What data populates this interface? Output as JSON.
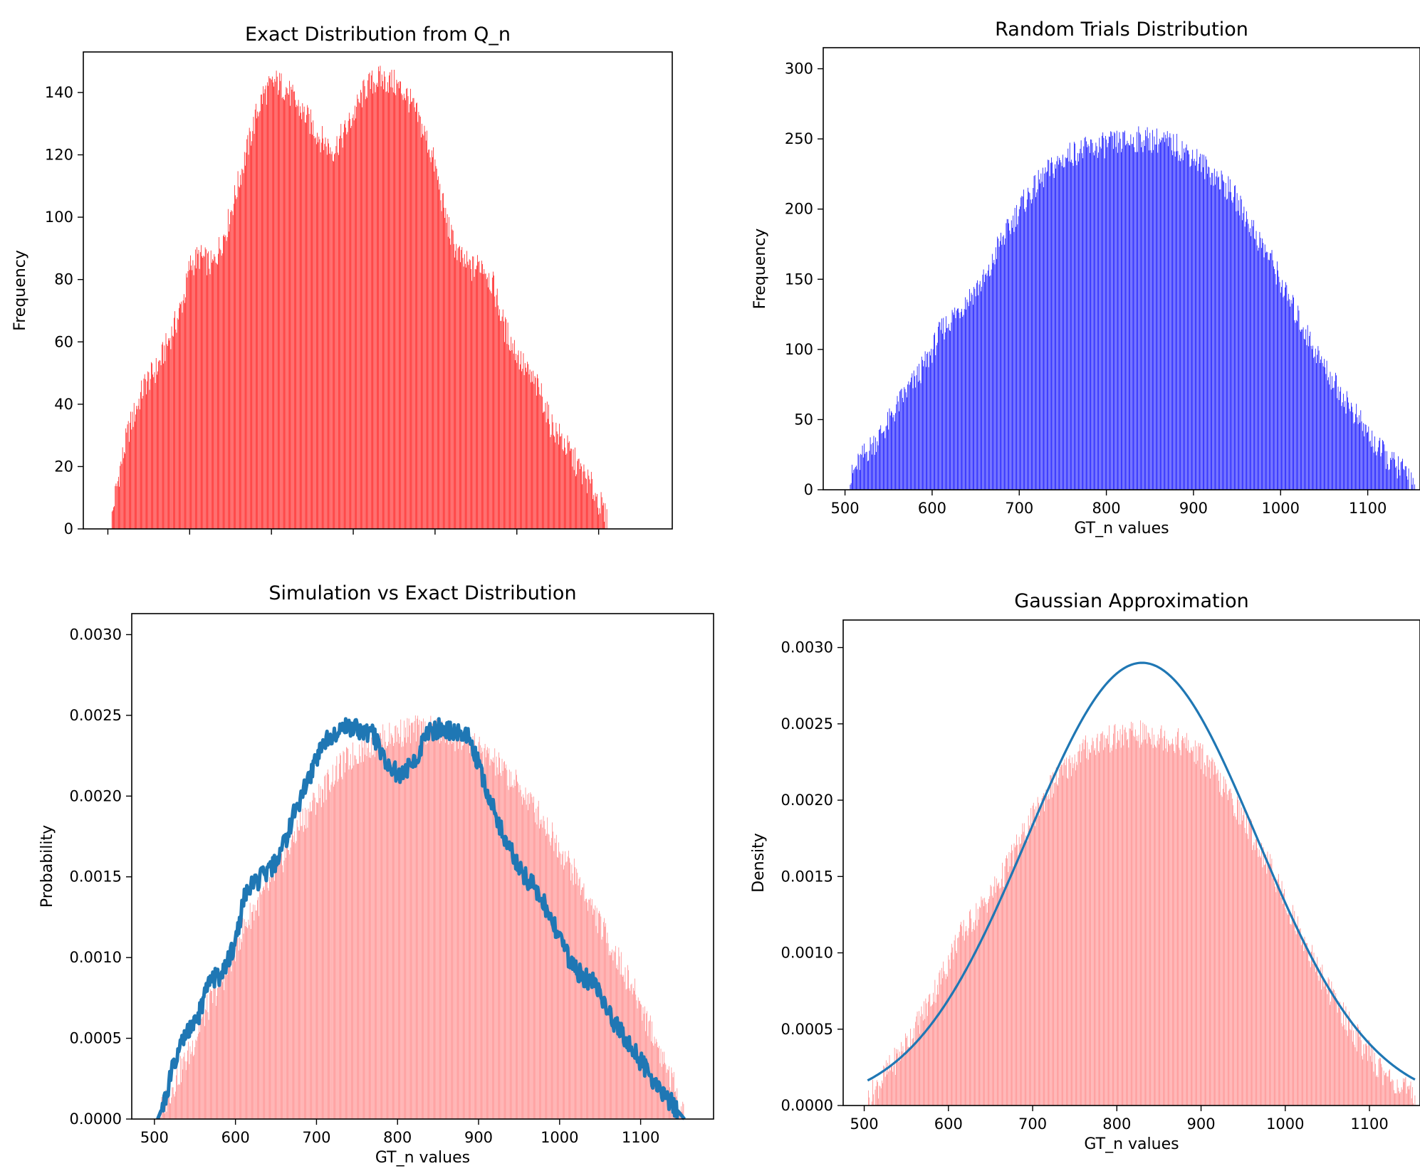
{
  "chart_data": [
    {
      "id": "exact",
      "type": "bar",
      "title": "Exact Distribution from Q_n",
      "xlabel": "",
      "ylabel": "Frequency",
      "xlim": [
        470,
        1190
      ],
      "ylim": [
        0,
        153
      ],
      "xticks": [
        500,
        600,
        700,
        800,
        900,
        1000,
        1100
      ],
      "xticklabels_visible": false,
      "yticks": [
        0,
        20,
        40,
        60,
        80,
        100,
        120,
        140
      ],
      "yticklabels": [
        "0",
        "20",
        "40",
        "60",
        "80",
        "100",
        "120",
        "140"
      ],
      "bar_color": "#ff0000",
      "series": [
        {
          "kind": "bars",
          "x_start": 504,
          "x_end": 1154,
          "step": 1,
          "profile": [
            [
              504,
              0
            ],
            [
              508,
              8
            ],
            [
              515,
              18
            ],
            [
              525,
              30
            ],
            [
              545,
              45
            ],
            [
              560,
              50
            ],
            [
              568,
              55
            ],
            [
              585,
              66
            ],
            [
              595,
              75
            ],
            [
              600,
              83
            ],
            [
              612,
              86
            ],
            [
              628,
              83
            ],
            [
              645,
              95
            ],
            [
              660,
              110
            ],
            [
              672,
              122
            ],
            [
              682,
              132
            ],
            [
              690,
              138
            ],
            [
              705,
              142
            ],
            [
              718,
              140
            ],
            [
              730,
              135
            ],
            [
              745,
              130
            ],
            [
              760,
              124
            ],
            [
              775,
              120
            ],
            [
              790,
              126
            ],
            [
              805,
              134
            ],
            [
              815,
              140
            ],
            [
              830,
              143
            ],
            [
              848,
              142
            ],
            [
              865,
              138
            ],
            [
              880,
              130
            ],
            [
              892,
              122
            ],
            [
              900,
              115
            ],
            [
              910,
              102
            ],
            [
              920,
              92
            ],
            [
              932,
              85
            ],
            [
              945,
              82
            ],
            [
              958,
              84
            ],
            [
              972,
              76
            ],
            [
              985,
              63
            ],
            [
              998,
              56
            ],
            [
              1012,
              49
            ],
            [
              1030,
              42
            ],
            [
              1040,
              33
            ],
            [
              1058,
              26
            ],
            [
              1076,
              18
            ],
            [
              1092,
              12
            ],
            [
              1103,
              6
            ],
            [
              1110,
              1
            ],
            [
              1112,
              0
            ]
          ]
        }
      ]
    },
    {
      "id": "random",
      "type": "bar",
      "title": "Random Trials Distribution",
      "xlabel": "GT_n values",
      "ylabel": "Frequency",
      "xlim": [
        475,
        1160
      ],
      "ylim": [
        0,
        315
      ],
      "xticks": [
        500,
        600,
        700,
        800,
        900,
        1000,
        1100
      ],
      "xticklabels": [
        "500",
        "600",
        "700",
        "800",
        "900",
        "1000",
        "1100"
      ],
      "yticks": [
        0,
        50,
        100,
        150,
        200,
        250,
        300
      ],
      "yticklabels": [
        "0",
        "50",
        "100",
        "150",
        "200",
        "250",
        "300"
      ],
      "bar_color": "#0000ff",
      "series": [
        {
          "kind": "bars",
          "x_start": 504,
          "x_end": 1155,
          "step": 1,
          "profile": [
            [
              504,
              0
            ],
            [
              510,
              10
            ],
            [
              522,
              22
            ],
            [
              535,
              32
            ],
            [
              550,
              45
            ],
            [
              565,
              62
            ],
            [
              580,
              75
            ],
            [
              595,
              90
            ],
            [
              610,
              110
            ],
            [
              630,
              125
            ],
            [
              650,
              140
            ],
            [
              665,
              150
            ],
            [
              675,
              170
            ],
            [
              690,
              185
            ],
            [
              700,
              198
            ],
            [
              715,
              210
            ],
            [
              730,
              222
            ],
            [
              745,
              230
            ],
            [
              760,
              237
            ],
            [
              780,
              240
            ],
            [
              800,
              243
            ],
            [
              820,
              245
            ],
            [
              840,
              247
            ],
            [
              860,
              246
            ],
            [
              880,
              242
            ],
            [
              900,
              235
            ],
            [
              915,
              226
            ],
            [
              930,
              218
            ],
            [
              945,
              208
            ],
            [
              960,
              192
            ],
            [
              975,
              175
            ],
            [
              990,
              160
            ],
            [
              1005,
              138
            ],
            [
              1020,
              120
            ],
            [
              1035,
              102
            ],
            [
              1050,
              85
            ],
            [
              1065,
              70
            ],
            [
              1080,
              56
            ],
            [
              1095,
              42
            ],
            [
              1110,
              28
            ],
            [
              1125,
              18
            ],
            [
              1140,
              11
            ],
            [
              1150,
              5
            ],
            [
              1155,
              0
            ]
          ]
        }
      ]
    },
    {
      "id": "compare",
      "type": "bar",
      "title": "Simulation vs Exact Distribution",
      "xlabel": "GT_n values",
      "ylabel": "Probability",
      "xlim": [
        472,
        1190
      ],
      "ylim": [
        0,
        0.00313
      ],
      "xticks": [
        500,
        600,
        700,
        800,
        900,
        1000,
        1100
      ],
      "xticklabels": [
        "500",
        "600",
        "700",
        "800",
        "900",
        "1000",
        "1100"
      ],
      "yticks": [
        0,
        0.0005,
        0.001,
        0.0015,
        0.002,
        0.0025,
        0.003
      ],
      "yticklabels": [
        "0.0000",
        "0.0005",
        "0.0010",
        "0.0015",
        "0.0020",
        "0.0025",
        "0.0030"
      ],
      "series": [
        {
          "kind": "bars",
          "color": "#ff8080",
          "x_start": 506,
          "x_end": 1154,
          "step": 1,
          "profile": [
            [
              506,
              0
            ],
            [
              515,
              0.0001
            ],
            [
              530,
              0.00025
            ],
            [
              545,
              0.0004
            ],
            [
              560,
              0.0006
            ],
            [
              575,
              0.00075
            ],
            [
              590,
              0.0009
            ],
            [
              605,
              0.0011
            ],
            [
              620,
              0.00125
            ],
            [
              640,
              0.0014
            ],
            [
              660,
              0.0016
            ],
            [
              680,
              0.0018
            ],
            [
              700,
              0.00195
            ],
            [
              720,
              0.0021
            ],
            [
              740,
              0.0022
            ],
            [
              760,
              0.00228
            ],
            [
              780,
              0.00232
            ],
            [
              800,
              0.00236
            ],
            [
              820,
              0.00238
            ],
            [
              840,
              0.00238
            ],
            [
              860,
              0.00236
            ],
            [
              880,
              0.00232
            ],
            [
              900,
              0.00226
            ],
            [
              920,
              0.00218
            ],
            [
              940,
              0.00208
            ],
            [
              960,
              0.00196
            ],
            [
              980,
              0.00182
            ],
            [
              1000,
              0.00165
            ],
            [
              1020,
              0.00148
            ],
            [
              1040,
              0.00128
            ],
            [
              1060,
              0.00108
            ],
            [
              1080,
              0.00088
            ],
            [
              1100,
              0.00068
            ],
            [
              1115,
              0.0005
            ],
            [
              1130,
              0.00032
            ],
            [
              1143,
              0.00015
            ],
            [
              1154,
              0
            ]
          ]
        },
        {
          "kind": "line",
          "color": "#1f77b4",
          "points": [
            [
              504,
              0
            ],
            [
              512,
              0.0001
            ],
            [
              522,
              0.0003
            ],
            [
              538,
              0.00052
            ],
            [
              550,
              0.00058
            ],
            [
              560,
              0.00072
            ],
            [
              568,
              0.00086
            ],
            [
              585,
              0.0009
            ],
            [
              600,
              0.0011
            ],
            [
              612,
              0.0014
            ],
            [
              628,
              0.00148
            ],
            [
              645,
              0.00155
            ],
            [
              660,
              0.0017
            ],
            [
              673,
              0.0019
            ],
            [
              690,
              0.0021
            ],
            [
              705,
              0.0023
            ],
            [
              718,
              0.00238
            ],
            [
              732,
              0.00243
            ],
            [
              750,
              0.00242
            ],
            [
              770,
              0.00238
            ],
            [
              790,
              0.00218
            ],
            [
              805,
              0.00212
            ],
            [
              822,
              0.00222
            ],
            [
              835,
              0.00238
            ],
            [
              850,
              0.00242
            ],
            [
              868,
              0.0024
            ],
            [
              885,
              0.00238
            ],
            [
              895,
              0.00228
            ],
            [
              905,
              0.0021
            ],
            [
              915,
              0.00196
            ],
            [
              932,
              0.00175
            ],
            [
              948,
              0.00158
            ],
            [
              960,
              0.00148
            ],
            [
              972,
              0.00142
            ],
            [
              986,
              0.00128
            ],
            [
              1000,
              0.00112
            ],
            [
              1015,
              0.00095
            ],
            [
              1030,
              0.00088
            ],
            [
              1045,
              0.00083
            ],
            [
              1060,
              0.00065
            ],
            [
              1075,
              0.00055
            ],
            [
              1090,
              0.00044
            ],
            [
              1105,
              0.00032
            ],
            [
              1122,
              0.0002
            ],
            [
              1138,
              0.0001
            ],
            [
              1154,
              0
            ]
          ]
        }
      ]
    },
    {
      "id": "gaussian",
      "type": "bar",
      "title": "Gaussian Approximation",
      "xlabel": "GT_n values",
      "ylabel": "Density",
      "xlim": [
        475,
        1160
      ],
      "ylim": [
        0,
        0.00318
      ],
      "xticks": [
        500,
        600,
        700,
        800,
        900,
        1000,
        1100
      ],
      "xticklabels": [
        "500",
        "600",
        "700",
        "800",
        "900",
        "1000",
        "1100"
      ],
      "yticks": [
        0,
        0.0005,
        0.001,
        0.0015,
        0.002,
        0.0025,
        0.003
      ],
      "yticklabels": [
        "0.0000",
        "0.0005",
        "0.0010",
        "0.0015",
        "0.0020",
        "0.0025",
        "0.0030"
      ],
      "series": [
        {
          "kind": "bars",
          "color": "#ff8080",
          "x_start": 504,
          "x_end": 1155,
          "step": 1,
          "profile": [
            [
              504,
              0
            ],
            [
              510,
              5e-05
            ],
            [
              522,
              0.00015
            ],
            [
              535,
              0.00025
            ],
            [
              550,
              0.00038
            ],
            [
              565,
              0.00052
            ],
            [
              580,
              0.00068
            ],
            [
              595,
              0.00085
            ],
            [
              610,
              0.00105
            ],
            [
              630,
              0.0012
            ],
            [
              650,
              0.00135
            ],
            [
              665,
              0.00148
            ],
            [
              675,
              0.0016
            ],
            [
              690,
              0.00175
            ],
            [
              705,
              0.0019
            ],
            [
              720,
              0.00205
            ],
            [
              740,
              0.00218
            ],
            [
              760,
              0.0023
            ],
            [
              780,
              0.00236
            ],
            [
              800,
              0.00238
            ],
            [
              820,
              0.0024
            ],
            [
              840,
              0.0024
            ],
            [
              860,
              0.00238
            ],
            [
              880,
              0.00234
            ],
            [
              900,
              0.00226
            ],
            [
              915,
              0.00215
            ],
            [
              930,
              0.00202
            ],
            [
              945,
              0.0019
            ],
            [
              960,
              0.00175
            ],
            [
              975,
              0.0016
            ],
            [
              990,
              0.00145
            ],
            [
              1005,
              0.00125
            ],
            [
              1020,
              0.00108
            ],
            [
              1035,
              0.0009
            ],
            [
              1050,
              0.00075
            ],
            [
              1065,
              0.0006
            ],
            [
              1080,
              0.00046
            ],
            [
              1095,
              0.00034
            ],
            [
              1110,
              0.00023
            ],
            [
              1125,
              0.00014
            ],
            [
              1140,
              8e-05
            ],
            [
              1150,
              3e-05
            ],
            [
              1155,
              0
            ]
          ]
        },
        {
          "kind": "gaussian_curve",
          "color": "#1f77b4",
          "x_start": 504,
          "x_end": 1155,
          "mean": 830,
          "peak": 0.0029,
          "sigma": 136
        }
      ]
    }
  ]
}
